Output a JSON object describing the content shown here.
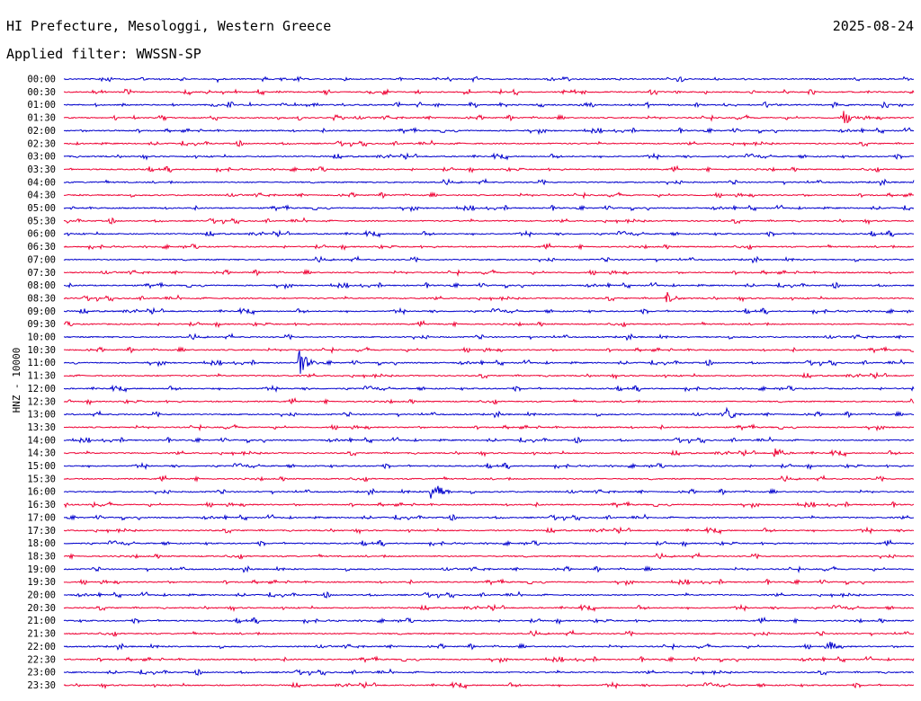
{
  "header": {
    "title": "HI Prefecture, Mesologgi, Western Greece",
    "date": "2025-08-24",
    "filter": "Applied filter: WWSSN-SP"
  },
  "channel_label": "HNZ - 10000",
  "colors": {
    "odd_trace": "#0000cc",
    "even_trace": "#ee0033"
  },
  "chart_data": {
    "type": "line",
    "title": "HI Prefecture, Mesologgi, Western Greece",
    "ylabel": "HNZ - 10000",
    "rows": [
      "00:00",
      "00:30",
      "01:00",
      "01:30",
      "02:00",
      "02:30",
      "03:00",
      "03:30",
      "04:00",
      "04:30",
      "05:00",
      "05:30",
      "06:00",
      "06:30",
      "07:00",
      "07:30",
      "08:00",
      "08:30",
      "09:00",
      "09:30",
      "10:00",
      "10:30",
      "11:00",
      "11:30",
      "12:00",
      "12:30",
      "13:00",
      "13:30",
      "14:00",
      "14:30",
      "15:00",
      "15:30",
      "16:00",
      "16:30",
      "17:00",
      "17:30",
      "18:00",
      "18:30",
      "19:00",
      "19:30",
      "20:00",
      "20:30",
      "21:00",
      "21:30",
      "22:00",
      "22:30",
      "23:00",
      "23:30"
    ],
    "series_colors": [
      "blue",
      "red"
    ],
    "events": [
      {
        "row": "01:30",
        "minute": 27.5,
        "amplitude": "medium"
      },
      {
        "row": "08:30",
        "minute": 21.3,
        "amplitude": "small"
      },
      {
        "row": "11:00",
        "minute": 8.3,
        "amplitude": "large"
      },
      {
        "row": "13:00",
        "minute": 23.4,
        "amplitude": "small"
      },
      {
        "row": "14:30",
        "minute": 25.1,
        "amplitude": "small"
      },
      {
        "row": "16:00",
        "minute": 13.0,
        "amplitude": "large"
      },
      {
        "row": "22:00",
        "minute": 27.0,
        "amplitude": "small"
      }
    ]
  }
}
